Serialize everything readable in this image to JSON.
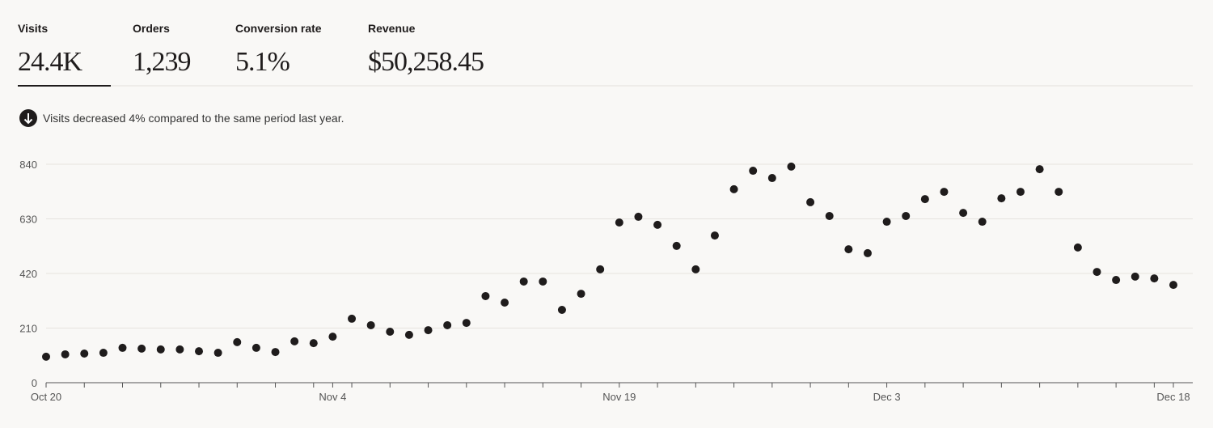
{
  "kpis": [
    {
      "label": "Visits",
      "value": "24.4K"
    },
    {
      "label": "Orders",
      "value": "1,239"
    },
    {
      "label": "Conversion rate",
      "value": "5.1%"
    },
    {
      "label": "Revenue",
      "value": "$50,258.45"
    }
  ],
  "note": "Visits decreased 4% compared to the same period last year.",
  "chart_data": {
    "type": "line",
    "categories": [
      "Oct 20",
      null,
      null,
      null,
      null,
      null,
      null,
      null,
      null,
      null,
      null,
      null,
      null,
      null,
      null,
      "Nov 4",
      null,
      null,
      null,
      null,
      null,
      null,
      null,
      null,
      null,
      null,
      null,
      null,
      null,
      null,
      "Nov 19",
      null,
      null,
      null,
      null,
      null,
      null,
      null,
      null,
      null,
      null,
      null,
      null,
      null,
      "Dec 3",
      null,
      null,
      null,
      null,
      null,
      null,
      null,
      null,
      null,
      null,
      null,
      null,
      null,
      null,
      "Dec 18"
    ],
    "series": [
      {
        "color": "#1f1c1c",
        "values": [
          100,
          109,
          112,
          115,
          134,
          131,
          128,
          128,
          121,
          115,
          156,
          134,
          118,
          159,
          152,
          177,
          246,
          221,
          196,
          184,
          202,
          221,
          230,
          333,
          308,
          389,
          389,
          280,
          342,
          436,
          616,
          638,
          607,
          526,
          436,
          566,
          744,
          815,
          787,
          831,
          694,
          641,
          513,
          498,
          619,
          641,
          706,
          734,
          653,
          619,
          709,
          734,
          821,
          734,
          520,
          426,
          395,
          408,
          401,
          376
        ]
      }
    ],
    "ylim": [
      0,
      840
    ],
    "yticks": [
      0,
      210,
      420,
      630,
      840
    ],
    "grid": true
  }
}
